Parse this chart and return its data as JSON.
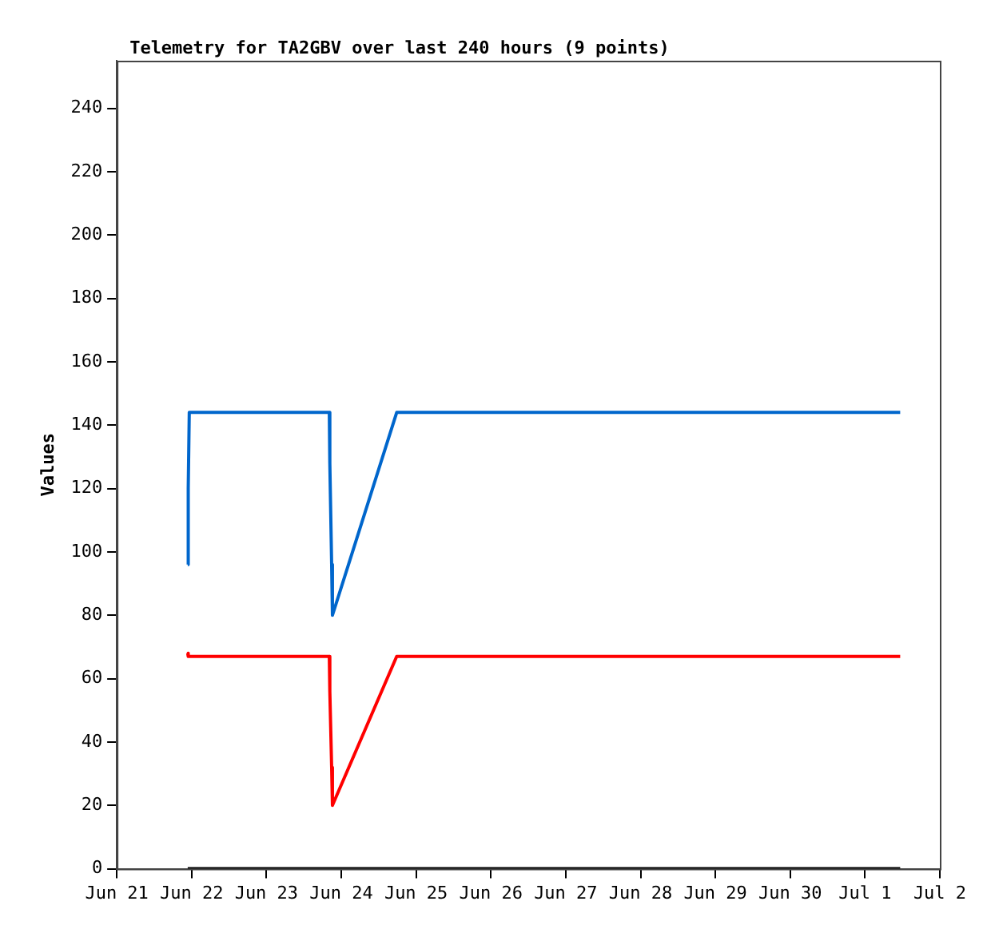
{
  "chart_data": {
    "type": "line",
    "title": "Telemetry for TA2GBV over last 240 hours (9 points)",
    "ylabel": "Values",
    "x": [
      "--06-21T22:45",
      "--06-21T22:55",
      "--06-21T23:15",
      "--06-23T20:10",
      "--06-23T20:20",
      "--06-23T20:55",
      "--06-23T21:10",
      "--06-24T17:47",
      "--07-01T11:17"
    ],
    "series": [
      {
        "color": "#0066cc",
        "values": [
          96,
          120,
          144,
          144,
          128,
          96,
          80,
          144,
          144
        ]
      },
      {
        "color": "#ff0000",
        "values": [
          68,
          67,
          67,
          67,
          56,
          32,
          20,
          67,
          67
        ]
      },
      {
        "color": "#000000",
        "values": [
          0,
          0,
          0,
          0,
          0,
          0,
          0,
          0,
          0
        ]
      }
    ],
    "xlim": [
      "--06-21",
      "--07-02"
    ],
    "xticks": [
      {
        "value": "--06-21",
        "label": "Jun 21"
      },
      {
        "value": "--06-22",
        "label": "Jun 22"
      },
      {
        "value": "--06-23",
        "label": "Jun 23"
      },
      {
        "value": "--06-24",
        "label": "Jun 24"
      },
      {
        "value": "--06-25",
        "label": "Jun 25"
      },
      {
        "value": "--06-26",
        "label": "Jun 26"
      },
      {
        "value": "--06-27",
        "label": "Jun 27"
      },
      {
        "value": "--06-28",
        "label": "Jun 28"
      },
      {
        "value": "--06-29",
        "label": "Jun 29"
      },
      {
        "value": "--06-30",
        "label": "Jun 30"
      },
      {
        "value": "--07-01",
        "label": "Jul 1"
      },
      {
        "value": "--07-02",
        "label": "Jul 2"
      }
    ],
    "ylim": [
      0,
      255
    ],
    "yticks": [
      0,
      20,
      40,
      60,
      80,
      100,
      120,
      140,
      160,
      180,
      200,
      220,
      240
    ],
    "grid": false,
    "legend": false,
    "marker": "none",
    "line_style": "solid"
  }
}
